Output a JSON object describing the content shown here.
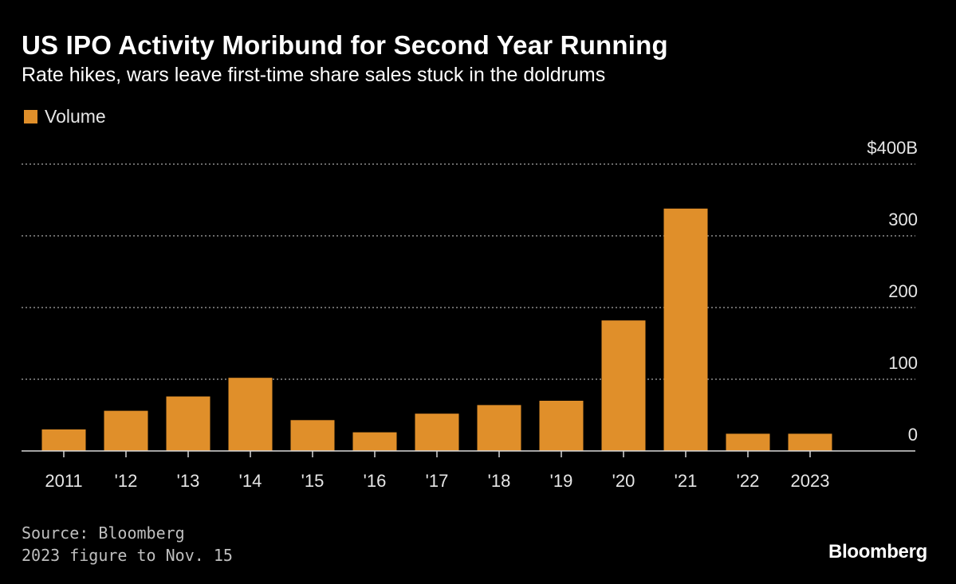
{
  "header": {
    "title": "US IPO Activity Moribund for Second Year Running",
    "subtitle": "Rate hikes, wars leave first-time share sales stuck in the doldrums"
  },
  "legend": {
    "label": "Volume",
    "color": "#e08f2a"
  },
  "footer": {
    "source": "Source: Bloomberg",
    "note": "2023 figure to Nov. 15",
    "brand": "Bloomberg"
  },
  "chart_data": {
    "type": "bar",
    "categories": [
      "2011",
      "'12",
      "'13",
      "'14",
      "'15",
      "'16",
      "'17",
      "'18",
      "'19",
      "'20",
      "'21",
      "'22",
      "2023"
    ],
    "series": [
      {
        "name": "Volume",
        "values": [
          30,
          56,
          76,
          102,
          43,
          26,
          52,
          64,
          70,
          182,
          338,
          24,
          24
        ],
        "color": "#e08f2a"
      }
    ],
    "yticks": [
      0,
      100,
      200,
      300,
      400
    ],
    "ytick_labels": [
      "0",
      "100",
      "200",
      "300",
      "$400B"
    ],
    "ylim": [
      0,
      400
    ],
    "grid": true,
    "grid_style": "dotted",
    "y_axis_position": "right",
    "legend_position": "top-left"
  }
}
